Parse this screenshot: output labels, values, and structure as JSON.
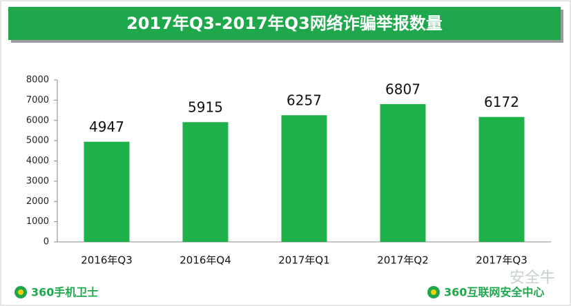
{
  "chart_data": {
    "type": "bar",
    "title": "2017年Q3-2017年Q3网络诈骗举报数量",
    "categories": [
      "2016年Q3",
      "2016年Q4",
      "2017年Q1",
      "2017年Q2",
      "2017年Q3"
    ],
    "values": [
      4947,
      5915,
      6257,
      6807,
      6172
    ],
    "color": "#1fb24a",
    "ylim": [
      0,
      8000
    ],
    "yticks": [
      0,
      1000,
      2000,
      3000,
      4000,
      5000,
      6000,
      7000,
      8000
    ],
    "grid": false
  },
  "footer": {
    "left": "360手机卫士",
    "right": "360互联网安全中心",
    "watermark": "安全牛"
  }
}
